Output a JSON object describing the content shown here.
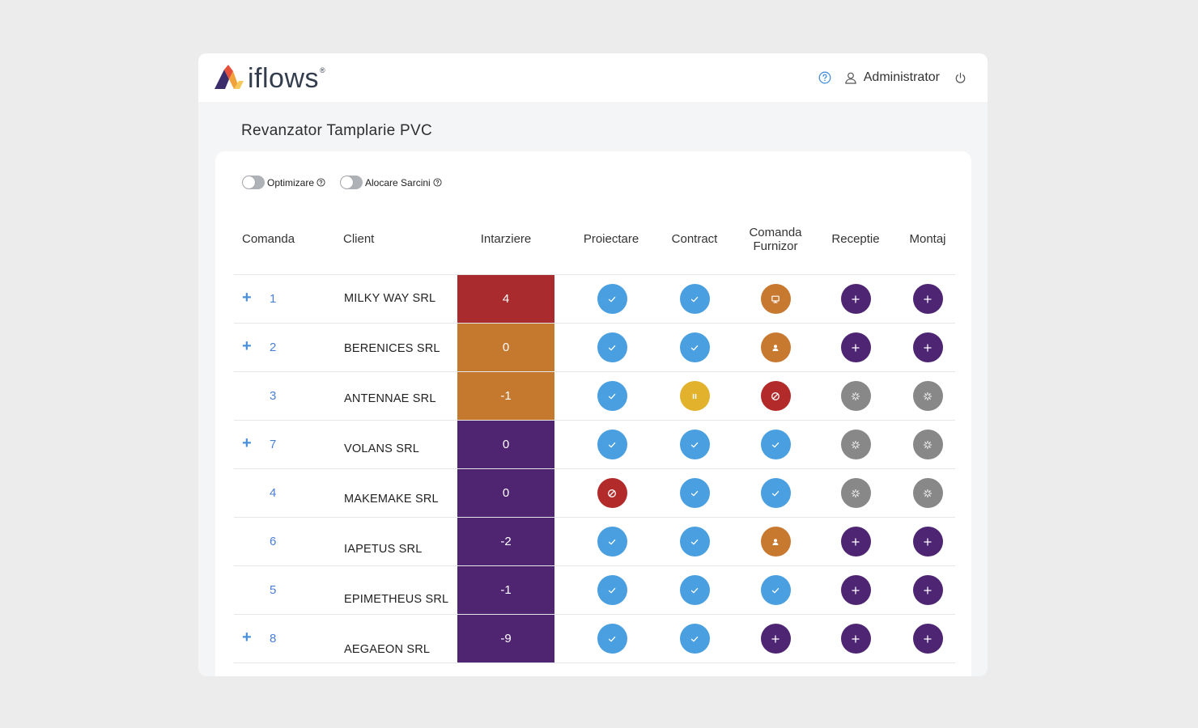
{
  "header": {
    "logo_text": "iflows",
    "logo_reg": "®",
    "user_name": "Administrator",
    "icons": [
      "help-icon",
      "user-icon",
      "power-icon"
    ]
  },
  "page": {
    "title": "Revanzator Tamplarie PVC"
  },
  "toggles": [
    {
      "label": "Optimizare",
      "on": false
    },
    {
      "label": "Alocare Sarcini",
      "on": false
    }
  ],
  "columns": [
    "Comanda",
    "Client",
    "Intarziere",
    "Proiectare",
    "Contract",
    "Comanda Furnizor",
    "Receptie",
    "Montaj"
  ],
  "status_colors": {
    "done": "#4a9fe0",
    "pending": "#4e2572",
    "waiting": "#888888",
    "blocked": "#b32a2a",
    "paused": "#e2b22c",
    "assigned": "#c87930",
    "display": "#c87930"
  },
  "delay_colors": {
    "red": "#aa2b2e",
    "orange": "#c5792f",
    "purple": "#4f2470"
  },
  "rows": [
    {
      "expandable": true,
      "order": "1",
      "client": "MILKY WAY SRL",
      "delay": "4",
      "delay_color": "red",
      "statuses": [
        "done",
        "done",
        "display",
        "pending",
        "pending"
      ]
    },
    {
      "expandable": true,
      "order": "2",
      "client": "BERENICES SRL",
      "delay": "0",
      "delay_color": "orange",
      "statuses": [
        "done",
        "done",
        "assigned",
        "pending",
        "pending"
      ]
    },
    {
      "expandable": false,
      "order": "3",
      "client": "ANTENNAE SRL",
      "delay": "-1",
      "delay_color": "orange",
      "statuses": [
        "done",
        "paused",
        "blocked",
        "waiting",
        "waiting"
      ]
    },
    {
      "expandable": true,
      "order": "7",
      "client": "VOLANS SRL",
      "delay": "0",
      "delay_color": "purple",
      "statuses": [
        "done",
        "done",
        "done",
        "waiting",
        "waiting"
      ]
    },
    {
      "expandable": false,
      "order": "4",
      "client": "MAKEMAKE SRL",
      "delay": "0",
      "delay_color": "purple",
      "statuses": [
        "blocked",
        "done",
        "done",
        "waiting",
        "waiting"
      ]
    },
    {
      "expandable": false,
      "order": "6",
      "client": "IAPETUS SRL",
      "delay": "-2",
      "delay_color": "purple",
      "statuses": [
        "done",
        "done",
        "assigned",
        "pending",
        "pending"
      ]
    },
    {
      "expandable": false,
      "order": "5",
      "client": "EPIMETHEUS SRL",
      "delay": "-1",
      "delay_color": "purple",
      "statuses": [
        "done",
        "done",
        "done",
        "pending",
        "pending"
      ]
    },
    {
      "expandable": true,
      "order": "8",
      "client": "AEGAEON SRL",
      "delay": "-9",
      "delay_color": "purple",
      "statuses": [
        "done",
        "done",
        "pending",
        "pending",
        "pending"
      ]
    }
  ]
}
